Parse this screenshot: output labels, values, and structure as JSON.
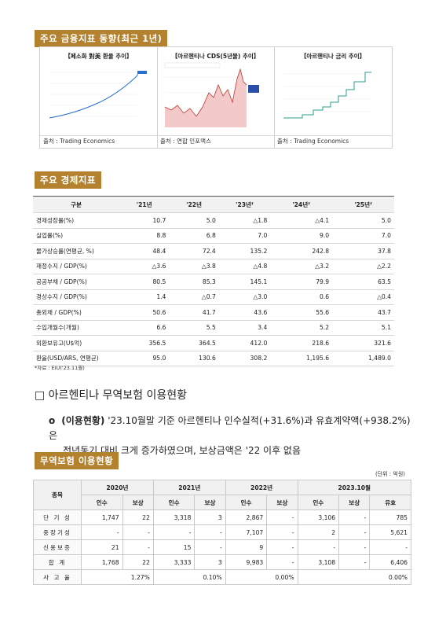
{
  "section1": {
    "title": "주요 금융지표 동향(최근 1년)",
    "panels": [
      {
        "title": "【페소화 對美 환율 추이】",
        "source": "출처 : Trading Economics"
      },
      {
        "title": "【아르헨티나 CDS(5년물) 추이】",
        "source": "출처 : 연합 인포맥스"
      },
      {
        "title": "【아르헨티나 금리 추이】",
        "source": "출처 : Trading Economics"
      }
    ]
  },
  "section2": {
    "title": "주요 경제지표",
    "headers": [
      "구분",
      "'21년",
      "'22년",
      "'23년ᶠ",
      "'24년ᶠ",
      "'25년ᶠ"
    ],
    "rows": [
      [
        "경제성장률(%)",
        "10.7",
        "5.0",
        "△1.8",
        "△4.1",
        "5.0"
      ],
      [
        "실업률(%)",
        "8.8",
        "6.8",
        "7.0",
        "9.0",
        "7.0"
      ],
      [
        "물가상승률(연평균, %)",
        "48.4",
        "72.4",
        "135.2",
        "242.8",
        "37.8"
      ],
      [
        "재정수지 / GDP(%)",
        "△3.6",
        "△3.8",
        "△4.8",
        "△3.2",
        "△2.2"
      ],
      [
        "공공부채 / GDP(%)",
        "80.5",
        "85.3",
        "145.1",
        "79.9",
        "63.5"
      ],
      [
        "경상수지 / GDP(%)",
        "1.4",
        "△0.7",
        "△3.0",
        "0.6",
        "△0.4"
      ],
      [
        "총외채 / GDP(%)",
        "50.6",
        "41.7",
        "43.6",
        "55.6",
        "43.7"
      ],
      [
        "수입개월수(개월)",
        "6.6",
        "5.5",
        "3.4",
        "5.2",
        "5.1"
      ],
      [
        "외환보유고(U$억)",
        "356.5",
        "364.5",
        "412.0",
        "218.6",
        "321.6"
      ],
      [
        "환율(USD/ARS, 연평균)",
        "95.0",
        "130.6",
        "308.2",
        "1,195.6",
        "1,489.0"
      ]
    ],
    "note": "*자료 : EIU('23.11월)"
  },
  "section3": {
    "heading": "□ 아르헨티나 무역보험 이용현황",
    "bullet": "o",
    "bold": "(이용현황)",
    "line1": " '23.10월말 기준 아르헨티나 인수실적(+31.6%)과 유효계약액(+938.2%)은",
    "line2": "전년동기 대비 크게 증가하였으며, 보상금액은 '22 이후 없음"
  },
  "section4": {
    "title": "무역보험 이용현황",
    "unit": "(단위 : 억원)",
    "col_kind": "종목",
    "years": [
      "2020년",
      "2021년",
      "2022년",
      "2023.10월"
    ],
    "sub": [
      "인수",
      "보상",
      "인수",
      "보상",
      "인수",
      "보상",
      "인수",
      "보상",
      "유효"
    ],
    "rows": [
      [
        "단 기 성",
        "1,747",
        "22",
        "3,318",
        "3",
        "2,867",
        "-",
        "3,106",
        "-",
        "785"
      ],
      [
        "중장기성",
        "-",
        "-",
        "-",
        "-",
        "7,107",
        "-",
        "2",
        "-",
        "5,621"
      ],
      [
        "신용보증",
        "21",
        "-",
        "15",
        "-",
        "9",
        "-",
        "-",
        "-",
        "-"
      ],
      [
        "합 계",
        "1,768",
        "22",
        "3,333",
        "3",
        "9,983",
        "-",
        "3,108",
        "-",
        "6,406"
      ]
    ],
    "loss_label": "사 고 율",
    "loss": [
      "1.27%",
      "0.10%",
      "0.00%",
      "0.00%"
    ]
  }
}
